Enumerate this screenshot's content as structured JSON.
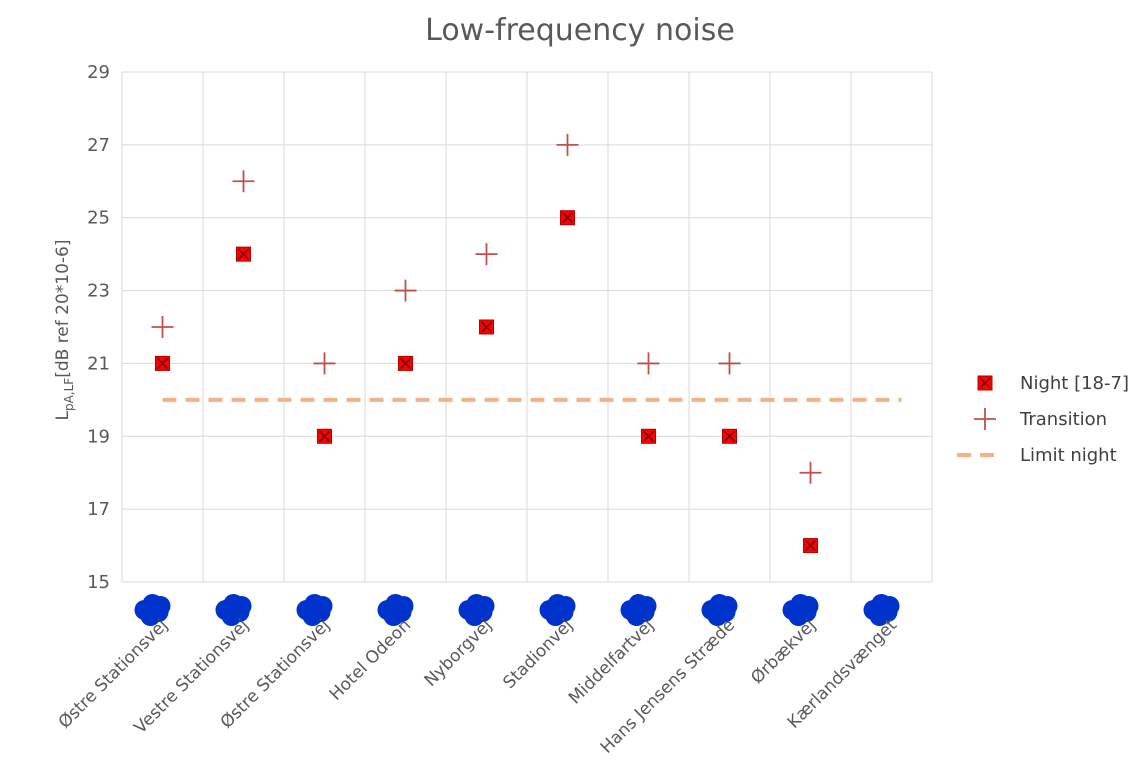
{
  "chart_data": {
    "type": "scatter",
    "title": "Low-frequency noise",
    "ylabel": {
      "main": "L",
      "sub": "pA,LF",
      "rest": "[dB ref 20*10-6]"
    },
    "ylim": [
      15,
      29
    ],
    "yticks": [
      15,
      17,
      19,
      21,
      23,
      25,
      27,
      29
    ],
    "grid": true,
    "legend_position": "right",
    "categories": [
      "Østre Stationsvej",
      "Vestre Stationsvej",
      "Østre Stationsvej",
      "Hotel Odeon",
      "Nyborgvej",
      "Stadionvej",
      "Middelfartvej",
      "Hans Jensens Stræde",
      "Ørbækvej",
      "Kærlandsvænget"
    ],
    "series": [
      {
        "name": "Night [18-7]",
        "marker": "filled-square-x",
        "color": "#ff0000",
        "values": [
          21,
          24,
          19,
          21,
          22,
          25,
          19,
          19,
          16,
          null
        ]
      },
      {
        "name": "Transition",
        "marker": "plus",
        "color": "#c0504d",
        "values": [
          22,
          26,
          21,
          23,
          24,
          27,
          21,
          21,
          18,
          null
        ]
      },
      {
        "name": "Limit night",
        "marker": "dashed-line",
        "color": "#f4b183",
        "constant": 20
      }
    ],
    "redaction_color": "#0033cc"
  }
}
